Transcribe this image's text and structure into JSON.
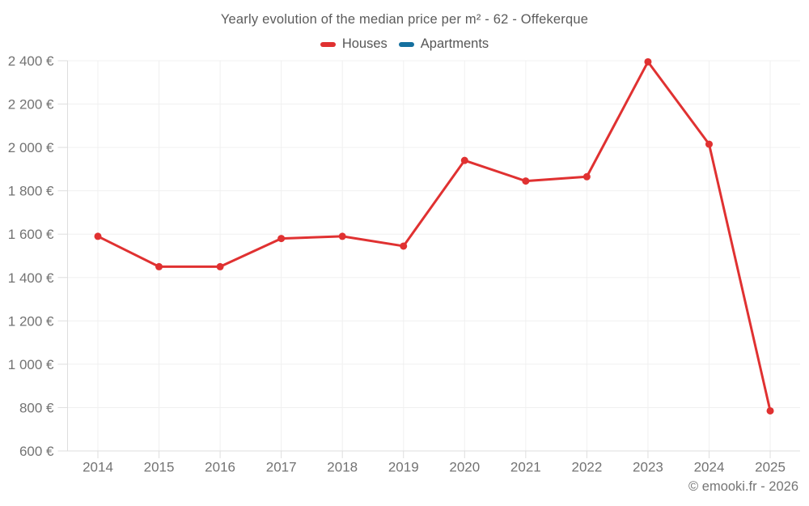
{
  "chart_data": {
    "type": "line",
    "title": "Yearly evolution of the median price per m² - 62 - Offekerque",
    "categories": [
      "2014",
      "2015",
      "2016",
      "2017",
      "2018",
      "2019",
      "2020",
      "2021",
      "2022",
      "2023",
      "2024",
      "2025"
    ],
    "series": [
      {
        "name": "Houses",
        "color": "#e03131",
        "values": [
          1590,
          1450,
          1450,
          1580,
          1590,
          1545,
          1940,
          1845,
          1865,
          2395,
          2015,
          785
        ]
      },
      {
        "name": "Apartments",
        "color": "#15709f",
        "values": []
      }
    ],
    "ylim": [
      600,
      2400
    ],
    "ytick_step": 200,
    "y_unit": "€",
    "grid": true,
    "legend_position": "top"
  },
  "footer": {
    "credit": "© emooki.fr - 2026"
  },
  "colors": {
    "houses_line": "#e03131",
    "apartments_swatch": "#15709f",
    "gridline": "#f0f0f0",
    "axis": "#dedede",
    "axis_text": "#737373",
    "title_text": "#5b5b5b"
  }
}
